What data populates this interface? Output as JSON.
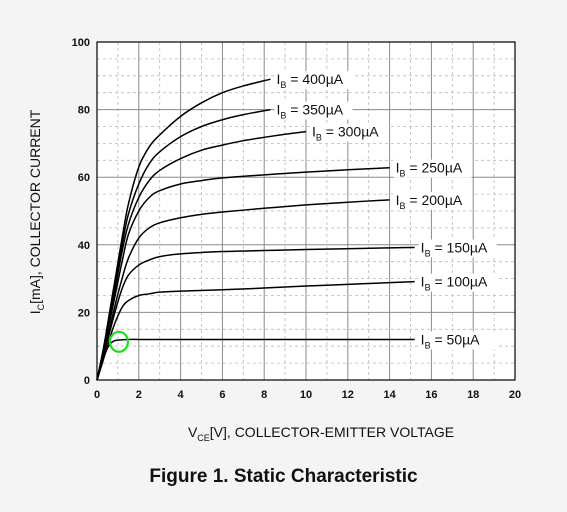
{
  "caption": "Figure 1. Static Characteristic",
  "highlight_color": "#22dd22",
  "chart_data": {
    "type": "line",
    "title": "Figure 1. Static Characteristic",
    "xlabel": {
      "main": "V",
      "sub": "CE",
      "rest": "[V], COLLECTOR-EMITTER VOLTAGE"
    },
    "ylabel": {
      "main": "I",
      "sub": "C",
      "rest": "[mA], COLLECTOR CURRENT"
    },
    "xlim": [
      0,
      20
    ],
    "ylim": [
      0,
      100
    ],
    "xticks": [
      "0",
      "2",
      "4",
      "6",
      "8",
      "10",
      "12",
      "14",
      "16",
      "18",
      "20"
    ],
    "yticks": [
      "0",
      "20",
      "40",
      "60",
      "80",
      "100"
    ],
    "grid": true,
    "series": [
      {
        "name": "50µA",
        "label": {
          "main": "I",
          "sub": "B",
          "rest": " = 50µA"
        },
        "x": [
          0,
          0.2,
          0.4,
          0.6,
          0.8,
          1,
          1.5,
          2,
          3,
          5,
          8,
          10,
          14,
          15.2
        ],
        "y": [
          0,
          4,
          8,
          10.5,
          11.5,
          11.8,
          12,
          12,
          12,
          12,
          12,
          12,
          12,
          12
        ]
      },
      {
        "name": "100µA",
        "label": {
          "main": "I",
          "sub": "B",
          "rest": " = 100µA"
        },
        "x": [
          0,
          0.25,
          0.5,
          0.75,
          1,
          1.25,
          1.5,
          2,
          2.5,
          3,
          4,
          6,
          8,
          10,
          12,
          14,
          15.2
        ],
        "y": [
          0,
          5,
          10,
          15,
          19,
          22,
          23.5,
          25,
          25.5,
          26,
          26.3,
          26.7,
          27.2,
          27.8,
          28.3,
          28.8,
          29.1
        ]
      },
      {
        "name": "150µA",
        "label": {
          "main": "I",
          "sub": "B",
          "rest": " = 150µA"
        },
        "x": [
          0,
          0.3,
          0.6,
          0.9,
          1.2,
          1.5,
          2,
          2.5,
          3,
          4,
          6,
          8,
          10,
          14,
          15.2
        ],
        "y": [
          0,
          7,
          14,
          21,
          27,
          31,
          34,
          35.5,
          36.5,
          37.3,
          38,
          38.3,
          38.6,
          39.1,
          39.2
        ]
      },
      {
        "name": "200µA",
        "label": {
          "main": "I",
          "sub": "B",
          "rest": " = 200µA"
        },
        "x": [
          0,
          0.3,
          0.6,
          0.9,
          1.2,
          1.5,
          2,
          2.5,
          3,
          4,
          5,
          6,
          8,
          10,
          12,
          14
        ],
        "y": [
          0,
          7,
          15,
          23,
          30,
          36,
          42,
          45,
          46.5,
          48,
          49,
          49.7,
          50.8,
          51.8,
          52.6,
          53.3
        ]
      },
      {
        "name": "250µA",
        "label": {
          "main": "I",
          "sub": "B",
          "rest": " = 250µA"
        },
        "x": [
          0,
          0.3,
          0.6,
          0.9,
          1.2,
          1.5,
          2,
          2.5,
          3,
          4,
          5,
          6,
          8,
          10,
          12,
          14
        ],
        "y": [
          0,
          8,
          17,
          26,
          35,
          43,
          50,
          54,
          56,
          58,
          59,
          59.8,
          60.7,
          61.5,
          62.2,
          62.8
        ]
      },
      {
        "name": "300µA",
        "label": {
          "main": "I",
          "sub": "B",
          "rest": " = 300µA"
        },
        "x": [
          0,
          0.3,
          0.6,
          0.9,
          1.2,
          1.5,
          2,
          2.5,
          3,
          4,
          5,
          6,
          7,
          8,
          9,
          10
        ],
        "y": [
          0,
          8,
          18,
          28,
          38,
          46,
          54,
          59,
          62,
          65.5,
          68,
          69.5,
          70.8,
          71.8,
          72.7,
          73.5
        ]
      },
      {
        "name": "350µA",
        "label": {
          "main": "I",
          "sub": "B",
          "rest": " = 350µA"
        },
        "x": [
          0,
          0.3,
          0.6,
          0.9,
          1.2,
          1.5,
          2,
          2.5,
          3,
          4,
          5,
          6,
          7,
          8.3
        ],
        "y": [
          0,
          9,
          19,
          29,
          40,
          49,
          58,
          64,
          67.5,
          72,
          75,
          77,
          78.5,
          80
        ]
      },
      {
        "name": "400µA",
        "label": {
          "main": "I",
          "sub": "B",
          "rest": " = 400µA"
        },
        "x": [
          0,
          0.3,
          0.6,
          0.9,
          1.2,
          1.5,
          2,
          2.5,
          3,
          4,
          5,
          6,
          7,
          8.3
        ],
        "y": [
          0,
          9,
          20,
          31,
          42,
          52,
          63,
          69,
          72.5,
          78,
          82,
          85,
          87,
          89
        ]
      }
    ],
    "annotation": {
      "type": "circle",
      "x": 1.05,
      "y": 11.3
    }
  }
}
